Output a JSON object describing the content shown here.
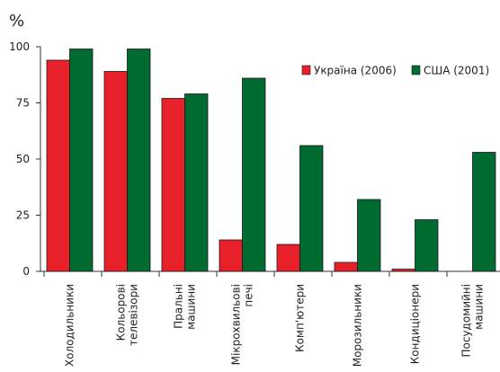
{
  "chart_data": {
    "type": "bar",
    "y_unit": "%",
    "ylim": [
      0,
      100
    ],
    "yticks": [
      0,
      25,
      50,
      75,
      100
    ],
    "grid": false,
    "legend_position": "top-right",
    "categories": [
      [
        "Холодильники"
      ],
      [
        "Кольорові",
        "телевізори"
      ],
      [
        "Пральні",
        "машини"
      ],
      [
        "Мікрохвильові",
        "печі"
      ],
      [
        "Комп'ютери"
      ],
      [
        "Морозильники"
      ],
      [
        "Кондиціонери"
      ],
      [
        "Посудомийні",
        "машини"
      ]
    ],
    "series": [
      {
        "name": "Україна (2006)",
        "color": "#e8202a",
        "values": [
          94,
          89,
          77,
          14,
          12,
          4,
          1,
          0
        ]
      },
      {
        "name": "США (2001)",
        "color": "#006b30",
        "values": [
          99,
          99,
          79,
          86,
          56,
          32,
          23,
          53
        ]
      }
    ]
  }
}
